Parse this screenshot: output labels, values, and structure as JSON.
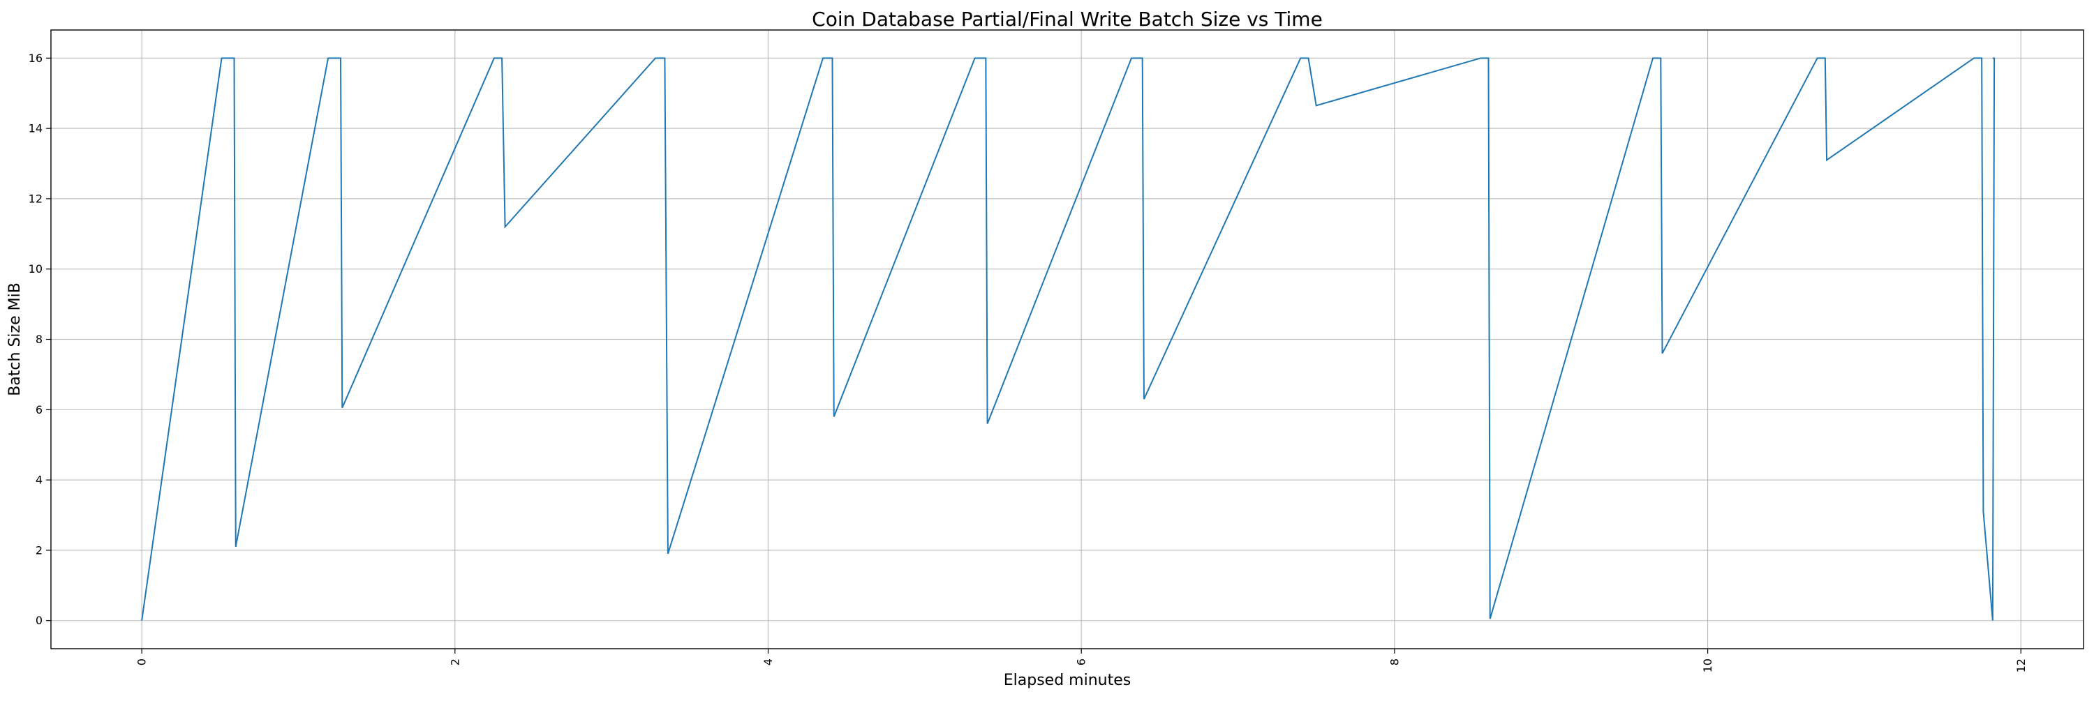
{
  "chart_data": {
    "type": "line",
    "title": "Coin Database Partial/Final Write Batch Size vs Time",
    "xlabel": "Elapsed minutes",
    "ylabel": "Batch Size MiB",
    "xlim": [
      -0.58,
      12.4
    ],
    "ylim": [
      -0.8,
      16.8
    ],
    "xticks": [
      0,
      2,
      4,
      6,
      8,
      10,
      12
    ],
    "yticks": [
      0,
      2,
      4,
      6,
      8,
      10,
      12,
      14,
      16
    ],
    "xtick_rotation": 90,
    "grid": true,
    "legend": "none",
    "series": [
      {
        "color": "#1f77b4",
        "x": [
          0.0,
          0.51,
          0.59,
          0.6,
          1.19,
          1.27,
          1.28,
          2.25,
          2.3,
          2.32,
          3.28,
          3.34,
          3.36,
          4.35,
          4.41,
          4.42,
          5.32,
          5.39,
          5.4,
          6.32,
          6.39,
          6.4,
          7.4,
          7.45,
          7.5,
          8.55,
          8.6,
          8.61,
          9.65,
          9.7,
          9.71,
          10.7,
          10.75,
          10.76,
          11.7,
          11.75,
          11.76,
          11.82,
          11.83,
          11.82
        ],
        "y": [
          0.0,
          16.0,
          16.0,
          2.1,
          16.0,
          16.0,
          6.05,
          16.0,
          16.0,
          11.2,
          16.0,
          16.0,
          1.9,
          16.0,
          16.0,
          5.8,
          16.0,
          16.0,
          5.6,
          16.0,
          16.0,
          6.3,
          16.0,
          16.0,
          14.65,
          16.0,
          16.0,
          0.05,
          16.0,
          16.0,
          7.6,
          16.0,
          16.0,
          13.1,
          16.0,
          16.0,
          3.1,
          0.0,
          16.0,
          16.0
        ]
      }
    ]
  }
}
